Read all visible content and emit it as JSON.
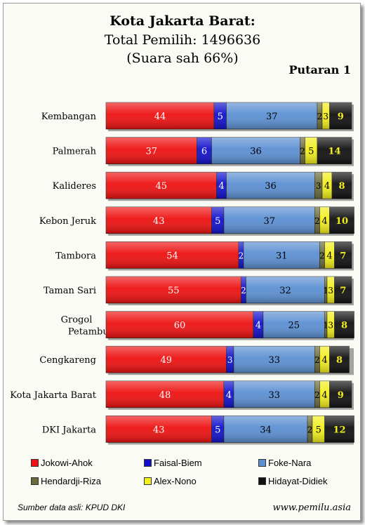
{
  "title": "Kota Jakarta Barat:",
  "subtitle": "Total Pemilih: 1496636",
  "subtitle2": "(Suara sah 66%)",
  "round_label": "Putaran 1",
  "source": "Sumber data asli: KPUD DKI",
  "website": "www.pemilu.asia",
  "chart_data": {
    "type": "bar",
    "orientation": "horizontal",
    "stacked": true,
    "categories": [
      "Kembangan",
      "Palmerah",
      "Kalideres",
      "Kebon Jeruk",
      "Tambora",
      "Taman Sari",
      "Grogol Petamburan",
      "Cengkareng",
      "Kota Jakarta Barat",
      "DKI Jakarta"
    ],
    "series": [
      {
        "name": "Jokowi-Ahok",
        "color": "#ee1111",
        "label_color": "#ffffff",
        "values": [
          44,
          37,
          45,
          43,
          54,
          55,
          60,
          49,
          48,
          43
        ]
      },
      {
        "name": "Faisal-Biem",
        "color": "#1111cc",
        "label_color": "#ffffff",
        "values": [
          5,
          6,
          4,
          5,
          2,
          2,
          4,
          3,
          4,
          5
        ]
      },
      {
        "name": "Foke-Nara",
        "color": "#5b8fd2",
        "label_color": "#000000",
        "values": [
          37,
          36,
          36,
          37,
          31,
          32,
          25,
          33,
          33,
          34
        ]
      },
      {
        "name": "Hendardji-Riza",
        "color": "#6b6b3a",
        "label_color": "#000000",
        "values": [
          2,
          2,
          3,
          2,
          2,
          1,
          1,
          2,
          2,
          2
        ]
      },
      {
        "name": "Alex-Nono",
        "color": "#f2ee1c",
        "label_color": "#000000",
        "values": [
          3,
          5,
          4,
          4,
          4,
          3,
          3,
          4,
          4,
          5
        ]
      },
      {
        "name": "Hidayat-Didiek",
        "color": "#111111",
        "label_color": "#f2ee1c",
        "values": [
          9,
          14,
          8,
          10,
          7,
          7,
          8,
          8,
          9,
          12
        ]
      }
    ],
    "xlim": [
      0,
      100
    ],
    "legend_position": "bottom",
    "grid": false
  }
}
